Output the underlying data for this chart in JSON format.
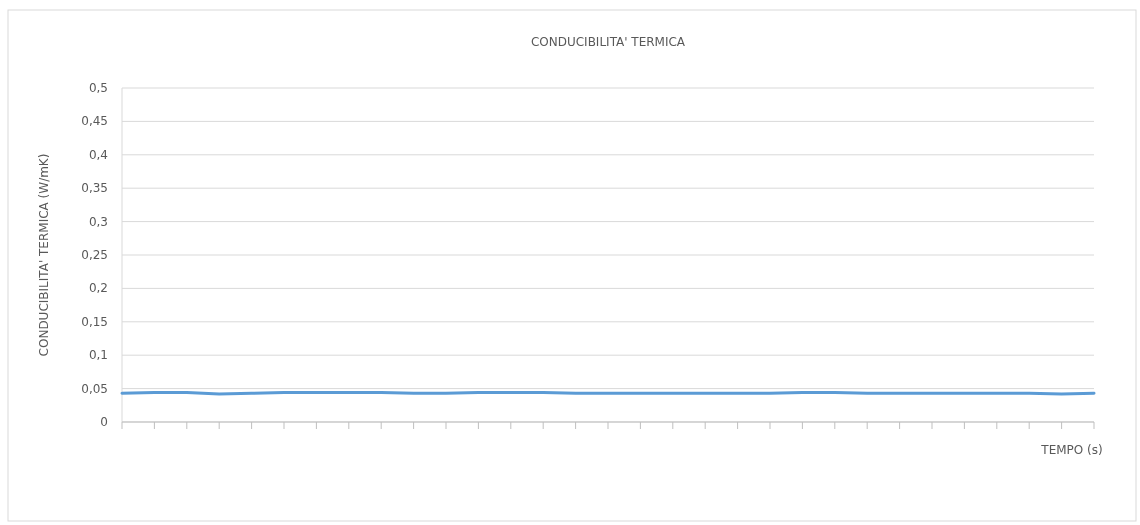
{
  "chart_data": {
    "type": "line",
    "title": "CONDUCIBILITA' TERMICA",
    "xlabel": "TEMPO (s)",
    "ylabel": "CONDUCIBILITA' TERMICA (W/mK)",
    "categories": [
      null,
      null,
      null,
      null,
      null,
      null,
      null,
      null,
      null,
      null,
      null,
      null,
      null,
      null,
      null,
      null,
      null,
      null,
      null,
      null,
      null,
      null,
      null,
      null,
      null,
      null,
      null,
      null,
      null,
      null,
      null
    ],
    "series": [
      {
        "color": "#5b9bd5",
        "values": [
          0.043,
          0.044,
          0.044,
          0.042,
          0.043,
          0.044,
          0.044,
          0.044,
          0.044,
          0.043,
          0.043,
          0.044,
          0.044,
          0.044,
          0.043,
          0.043,
          0.043,
          0.043,
          0.043,
          0.043,
          0.043,
          0.044,
          0.044,
          0.043,
          0.043,
          0.043,
          0.043,
          0.043,
          0.043,
          0.042,
          0.043
        ]
      }
    ],
    "ylim": [
      0,
      0.5
    ],
    "yticks": [
      {
        "value": 0,
        "label": "0"
      },
      {
        "value": 0.05,
        "label": "0,05"
      },
      {
        "value": 0.1,
        "label": "0,1"
      },
      {
        "value": 0.15,
        "label": "0,15"
      },
      {
        "value": 0.2,
        "label": "0,2"
      },
      {
        "value": 0.25,
        "label": "0,25"
      },
      {
        "value": 0.3,
        "label": "0,3"
      },
      {
        "value": 0.35,
        "label": "0,35"
      },
      {
        "value": 0.4,
        "label": "0,4"
      },
      {
        "value": 0.45,
        "label": "0,45"
      },
      {
        "value": 0.5,
        "label": "0,5"
      }
    ],
    "grid": "y",
    "tick_labels": "y"
  }
}
